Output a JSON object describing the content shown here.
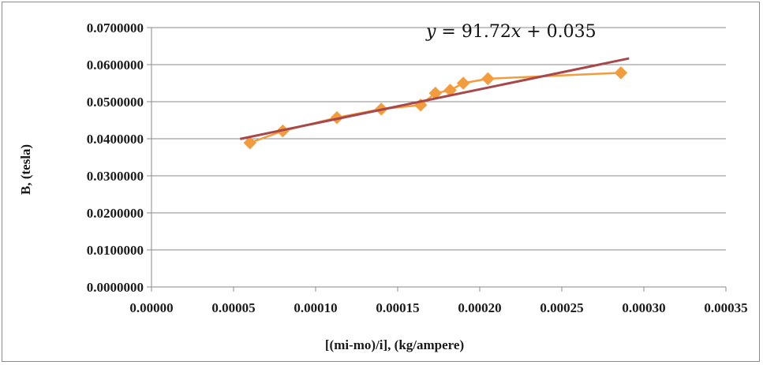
{
  "chart_data": {
    "type": "scatter",
    "xlabel": "[(mi-mo)/i], (kg/ampere)",
    "ylabel": "B, (tesla)",
    "xlim": [
      0,
      0.00035
    ],
    "ylim": [
      0,
      0.07
    ],
    "x_ticks": [
      0,
      5e-05,
      0.0001,
      0.00015,
      0.0002,
      0.00025,
      0.0003,
      0.00035
    ],
    "x_tick_labels": [
      "0.00000",
      "0.00005",
      "0.00010",
      "0.00015",
      "0.00020",
      "0.00025",
      "0.00030",
      "0.00035"
    ],
    "y_ticks": [
      0,
      0.01,
      0.02,
      0.03,
      0.04,
      0.05,
      0.06,
      0.07
    ],
    "y_tick_labels": [
      "0.0000000",
      "0.0100000",
      "0.0200000",
      "0.0300000",
      "0.0400000",
      "0.0500000",
      "0.0600000",
      "0.0700000"
    ],
    "grid": "horizontal",
    "legend": "none",
    "series": [
      {
        "color": "#f39c3d",
        "marker": "diamond",
        "line": "connected",
        "x": [
          6e-05,
          8e-05,
          0.000113,
          0.00014,
          0.000164,
          0.000173,
          0.000182,
          0.00019,
          0.000205,
          0.000286
        ],
        "y": [
          0.0389,
          0.0421,
          0.0457,
          0.048,
          0.0491,
          0.0523,
          0.0531,
          0.055,
          0.0562,
          0.0578
        ]
      }
    ],
    "trendline": {
      "color": "#a8484b",
      "slope": 91.72,
      "intercept": 0.035,
      "x_range": [
        5.4e-05,
        0.000291
      ]
    },
    "annotation": {
      "text": "y = 91.72x + 0.035"
    }
  }
}
